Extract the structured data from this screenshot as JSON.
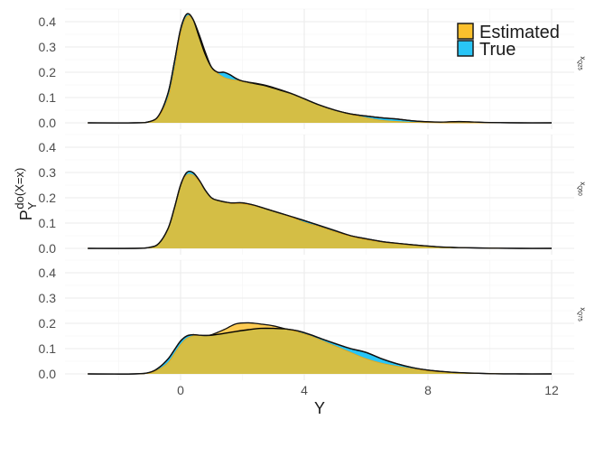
{
  "chart_data": {
    "type": "area",
    "title": "",
    "xlabel": "Y",
    "ylabel": "P_Y^do(X=x)",
    "ylabel_parts": {
      "main": "P",
      "sub": "Y",
      "sup": "do(X=x)"
    },
    "xlim": [
      -3.2,
      12.7
    ],
    "ylim": [
      0,
      0.45
    ],
    "x_ticks": [
      0,
      4,
      8,
      12
    ],
    "y_ticks": [
      0.0,
      0.1,
      0.2,
      0.3,
      0.4
    ],
    "grid": true,
    "legend": {
      "position": "top-right",
      "entries": [
        {
          "name": "Estimated",
          "color": "#FBC02D"
        },
        {
          "name": "True",
          "color": "#29C5F6"
        }
      ]
    },
    "panels": [
      {
        "strip": "x_Q25",
        "strip_main": "x",
        "strip_sub": "Q25",
        "series": [
          {
            "name": "True",
            "x": [
              -3,
              -1.5,
              -1,
              -0.7,
              -0.4,
              -0.2,
              0,
              0.2,
              0.4,
              0.6,
              0.8,
              1.0,
              1.2,
              1.4,
              1.6,
              1.8,
              2.0,
              2.4,
              2.8,
              3.2,
              3.6,
              4.0,
              4.5,
              5.0,
              5.5,
              6.0,
              6.5,
              7.0,
              7.5,
              8.0,
              8.5,
              9.0,
              9.5,
              10,
              11,
              12
            ],
            "values": [
              0,
              0,
              0.005,
              0.03,
              0.12,
              0.24,
              0.37,
              0.43,
              0.41,
              0.34,
              0.27,
              0.22,
              0.2,
              0.2,
              0.19,
              0.175,
              0.165,
              0.155,
              0.145,
              0.13,
              0.115,
              0.095,
              0.07,
              0.05,
              0.035,
              0.027,
              0.02,
              0.015,
              0.008,
              0.004,
              0.003,
              0.005,
              0.003,
              0.001,
              0,
              0
            ]
          },
          {
            "name": "Estimated",
            "x": [
              -3,
              -1.5,
              -1,
              -0.7,
              -0.4,
              -0.2,
              0,
              0.2,
              0.4,
              0.6,
              0.8,
              1.0,
              1.2,
              1.4,
              1.6,
              1.8,
              2.0,
              2.4,
              2.8,
              3.2,
              3.6,
              4.0,
              4.5,
              5.0,
              5.5,
              6.0,
              6.5,
              7.0,
              7.5,
              8.0,
              8.5,
              9.0,
              9.5,
              10,
              11,
              12
            ],
            "values": [
              0,
              0,
              0.004,
              0.025,
              0.1,
              0.21,
              0.35,
              0.42,
              0.41,
              0.35,
              0.28,
              0.22,
              0.195,
              0.18,
              0.172,
              0.168,
              0.163,
              0.157,
              0.147,
              0.132,
              0.115,
              0.095,
              0.07,
              0.05,
              0.033,
              0.02,
              0.01,
              0.005,
              0.002,
              0.001,
              0,
              0,
              0,
              0,
              0,
              0
            ]
          }
        ]
      },
      {
        "strip": "x_Q50",
        "strip_main": "x",
        "strip_sub": "Q50",
        "series": [
          {
            "name": "True",
            "x": [
              -3,
              -1.5,
              -1,
              -0.7,
              -0.4,
              -0.2,
              0,
              0.2,
              0.4,
              0.6,
              0.8,
              1.0,
              1.2,
              1.6,
              2.0,
              2.4,
              2.8,
              3.2,
              3.6,
              4.0,
              4.5,
              5.0,
              5.5,
              6.0,
              6.5,
              7.0,
              7.5,
              8.0,
              8.5,
              9.0,
              10,
              11,
              12
            ],
            "values": [
              0,
              0,
              0.004,
              0.02,
              0.08,
              0.16,
              0.25,
              0.3,
              0.3,
              0.27,
              0.23,
              0.2,
              0.19,
              0.18,
              0.18,
              0.17,
              0.155,
              0.14,
              0.125,
              0.11,
              0.09,
              0.07,
              0.05,
              0.038,
              0.027,
              0.02,
              0.014,
              0.009,
              0.005,
              0.003,
              0.001,
              0,
              0
            ]
          },
          {
            "name": "Estimated",
            "x": [
              -3,
              -1.5,
              -1,
              -0.7,
              -0.4,
              -0.2,
              0,
              0.2,
              0.4,
              0.6,
              0.8,
              1.0,
              1.2,
              1.6,
              2.0,
              2.4,
              2.8,
              3.2,
              3.6,
              4.0,
              4.5,
              5.0,
              5.5,
              6.0,
              6.5,
              7.0,
              7.5,
              8.0,
              8.5,
              9.0,
              10,
              11,
              12
            ],
            "values": [
              0,
              0,
              0.004,
              0.02,
              0.08,
              0.16,
              0.25,
              0.29,
              0.29,
              0.265,
              0.23,
              0.2,
              0.19,
              0.178,
              0.176,
              0.168,
              0.155,
              0.14,
              0.122,
              0.103,
              0.085,
              0.065,
              0.048,
              0.034,
              0.025,
              0.018,
              0.012,
              0.008,
              0.005,
              0.003,
              0.001,
              0,
              0
            ]
          }
        ]
      },
      {
        "strip": "x_Q75",
        "strip_main": "x",
        "strip_sub": "Q75",
        "series": [
          {
            "name": "True",
            "x": [
              -3,
              -1.5,
              -1,
              -0.7,
              -0.4,
              -0.2,
              0,
              0.2,
              0.4,
              0.6,
              0.8,
              1.0,
              1.4,
              1.8,
              2.2,
              2.6,
              3.0,
              3.4,
              3.8,
              4.2,
              4.6,
              5.0,
              5.5,
              6.0,
              6.5,
              7.0,
              7.5,
              8.0,
              8.5,
              9.0,
              10,
              11,
              12
            ],
            "values": [
              0,
              0,
              0.006,
              0.025,
              0.06,
              0.095,
              0.13,
              0.15,
              0.155,
              0.153,
              0.152,
              0.153,
              0.16,
              0.168,
              0.175,
              0.18,
              0.18,
              0.178,
              0.17,
              0.155,
              0.137,
              0.12,
              0.1,
              0.085,
              0.06,
              0.04,
              0.025,
              0.015,
              0.009,
              0.005,
              0.001,
              0,
              0
            ]
          },
          {
            "name": "Estimated",
            "x": [
              -3,
              -1.5,
              -1,
              -0.7,
              -0.4,
              -0.2,
              0,
              0.2,
              0.4,
              0.6,
              0.8,
              1.0,
              1.4,
              1.8,
              2.2,
              2.6,
              3.0,
              3.4,
              3.8,
              4.2,
              4.6,
              5.0,
              5.5,
              6.0,
              6.5,
              7.0,
              7.5,
              8.0,
              8.5,
              9.0,
              10,
              11,
              12
            ],
            "values": [
              0,
              0,
              0.004,
              0.018,
              0.045,
              0.08,
              0.115,
              0.14,
              0.15,
              0.152,
              0.152,
              0.155,
              0.175,
              0.198,
              0.202,
              0.197,
              0.19,
              0.178,
              0.165,
              0.15,
              0.13,
              0.11,
              0.085,
              0.06,
              0.042,
              0.03,
              0.02,
              0.012,
              0.007,
              0.004,
              0.001,
              0,
              0
            ]
          }
        ]
      }
    ],
    "colors": {
      "estimated_fill": "#FBC02D",
      "true_fill": "#29C5F6",
      "overlap_fill": "#D4BE45",
      "outline": "#000000",
      "grid": "#ebebeb"
    }
  }
}
